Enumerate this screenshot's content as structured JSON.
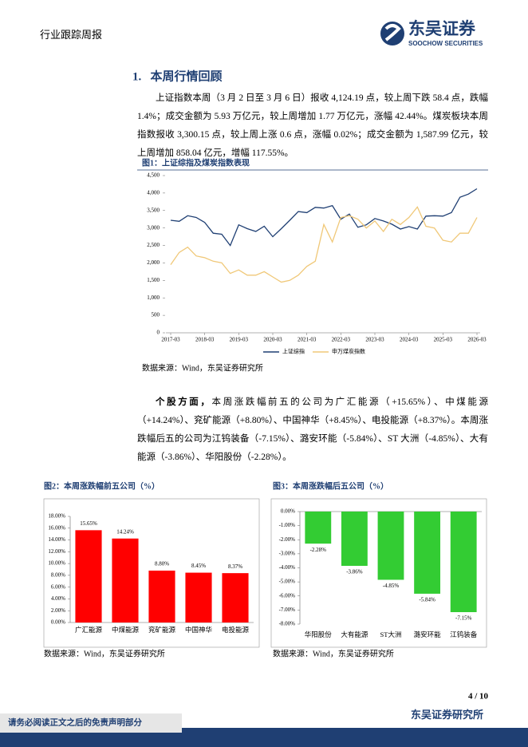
{
  "header": {
    "report_type": "行业跟踪周报",
    "logo_name": "东吴证券",
    "logo_subtitle": "SOOCHOW SECURITIES"
  },
  "section": {
    "title": "1.   本周行情回顾"
  },
  "paragraphs": [
    {
      "text": "上证指数本周（3 月 2 日至 3 月 6 日）报收 4,124.19 点，较上周下跌 58.4 点，跌幅 1.4%；成交金额为 5.93 万亿元，较上周增加 1.77 万亿元，涨幅 42.44%。煤炭板块本周指数报收 3,300.15 点，较上周上涨 0.6 点，涨幅 0.02%；成交金额为 1,587.99 亿元，较上周增加 858.04 亿元，增幅 117.55%。"
    },
    {
      "lead": "个股方面，",
      "text": "本周涨跌幅前五的公司为广汇能源（+15.65%）、中煤能源（+14.24%）、兖矿能源（+8.80%）、中国神华（+8.45%）、电投能源（+8.37%）。本周涨跌幅后五的公司为江钨装备（-7.15%）、潞安环能（-5.84%）、ST 大洲（-4.85%）、大有能源（-3.86%）、华阳股份（-2.28%）。"
    }
  ],
  "figures": [
    {
      "title": "图1：上证综指及煤炭指数表现",
      "source": "数据来源：Wind，东吴证券研究所"
    },
    {
      "title": "图2：本周涨跌幅前五公司（%）",
      "source": "数据来源：Wind，东吴证券研究所"
    },
    {
      "title": "图3：本周涨跌幅后五公司（%）",
      "source": "数据来源：Wind，东吴证券研究所"
    }
  ],
  "chart_data": [
    {
      "type": "line",
      "x": [
        "2017-03",
        "2017-06",
        "2017-09",
        "2017-12",
        "2018-03",
        "2018-06",
        "2018-09",
        "2018-12",
        "2019-03",
        "2019-06",
        "2019-09",
        "2019-12",
        "2020-03",
        "2020-06",
        "2020-09",
        "2020-12",
        "2021-03",
        "2021-06",
        "2021-09",
        "2021-12",
        "2022-03",
        "2022-06",
        "2022-09",
        "2022-12",
        "2023-03",
        "2023-06",
        "2023-09",
        "2023-12",
        "2024-03",
        "2024-06",
        "2024-09",
        "2024-12",
        "2025-03",
        "2025-06",
        "2025-09",
        "2025-12",
        "2026-03"
      ],
      "xticks": [
        "2017-03",
        "2018-03",
        "2019-03",
        "2020-03",
        "2021-03",
        "2022-03",
        "2023-03",
        "2024-03",
        "2025-03",
        "2026-03"
      ],
      "series": [
        {
          "name": "上证综指",
          "color": "#1f3f73",
          "values": [
            3220,
            3190,
            3350,
            3300,
            3160,
            2850,
            2820,
            2500,
            3090,
            2980,
            2900,
            3050,
            2750,
            2980,
            3220,
            3470,
            3440,
            3590,
            3570,
            3640,
            3250,
            3400,
            3020,
            3090,
            3270,
            3200,
            3110,
            2970,
            3040,
            2970,
            3340,
            3350,
            3340,
            3440,
            3880,
            3970,
            4124.19
          ]
        },
        {
          "name": "申万煤炭指数",
          "color": "#f0c878",
          "values": [
            1950,
            2300,
            2450,
            2200,
            2150,
            2050,
            2000,
            1700,
            1800,
            1650,
            1650,
            1750,
            1600,
            1450,
            1500,
            1650,
            1900,
            2050,
            3100,
            2600,
            3300,
            3350,
            3250,
            3000,
            3200,
            2900,
            3250,
            3100,
            3300,
            3600,
            3050,
            3000,
            2650,
            2600,
            2850,
            2850,
            3300.15
          ]
        }
      ],
      "ylim": [
        0,
        4500
      ],
      "yticks": [
        0,
        500,
        {
          "value": 1000,
          "label": "1,000"
        },
        {
          "value": 1500,
          "label": "1,500"
        },
        {
          "value": 2000,
          "label": "2,000"
        },
        {
          "value": 2500,
          "label": "2,500"
        },
        {
          "value": 3000,
          "label": "3,000"
        },
        {
          "value": 3500,
          "label": "3,500"
        },
        {
          "value": 4000,
          "label": "4,000"
        },
        {
          "value": 4500,
          "label": "4,500"
        }
      ],
      "grid": false
    },
    {
      "type": "bar",
      "categories": [
        "广汇能源",
        "中煤能源",
        "兖矿能源",
        "中国神华",
        "电投能源"
      ],
      "values": [
        15.65,
        14.24,
        8.8,
        8.45,
        8.37
      ],
      "value_labels": [
        "15.65%",
        "14.24%",
        "8.80%",
        "8.45%",
        "8.37%"
      ],
      "color": "#ff0000",
      "ylim": [
        0,
        18
      ],
      "yticks": [
        {
          "value": 0,
          "label": "0.00%"
        },
        {
          "value": 2,
          "label": "2.00%"
        },
        {
          "value": 4,
          "label": "4.00%"
        },
        {
          "value": 6,
          "label": "6.00%"
        },
        {
          "value": 8,
          "label": "8.00%"
        },
        {
          "value": 10,
          "label": "10.00%"
        },
        {
          "value": 12,
          "label": "12.00%"
        },
        {
          "value": 14,
          "label": "14.00%"
        },
        {
          "value": 16,
          "label": "16.00%"
        },
        {
          "value": 18,
          "label": "18.00%"
        }
      ]
    },
    {
      "type": "bar",
      "categories": [
        "华阳股份",
        "大有能源",
        "ST大洲",
        "潞安环能",
        "江钨装备"
      ],
      "values": [
        -2.28,
        -3.86,
        -4.85,
        -5.84,
        -7.15
      ],
      "value_labels": [
        "-2.28%",
        "-3.86%",
        "-4.85%",
        "-5.84%",
        "-7.15%"
      ],
      "color": "#33cc33",
      "ylim": [
        -8,
        0
      ],
      "yticks": [
        {
          "value": 0,
          "label": "0.00%"
        },
        {
          "value": -1,
          "label": "-1.00%"
        },
        {
          "value": -2,
          "label": "-2.00%"
        },
        {
          "value": -3,
          "label": "-3.00%"
        },
        {
          "value": -4,
          "label": "-4.00%"
        },
        {
          "value": -5,
          "label": "-5.00%"
        },
        {
          "value": -6,
          "label": "-6.00%"
        },
        {
          "value": -7,
          "label": "-7.00%"
        },
        {
          "value": -8,
          "label": "-8.00%"
        }
      ]
    }
  ],
  "footer": {
    "page": "4 / 10",
    "institute": "东吴证券研究所",
    "disclaimer": "请务必阅读正文之后的免责声明部分"
  }
}
